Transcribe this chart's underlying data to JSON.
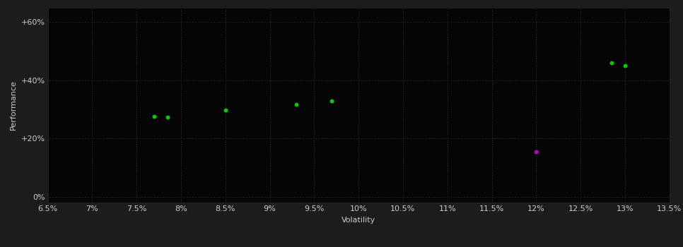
{
  "background_color": "#1c1c1c",
  "plot_bg_color": "#050505",
  "grid_color": "#2d2d2d",
  "text_color": "#cccccc",
  "xlabel": "Volatility",
  "ylabel": "Performance",
  "xlim": [
    0.065,
    0.135
  ],
  "ylim": [
    -0.02,
    0.65
  ],
  "xticks": [
    0.065,
    0.07,
    0.075,
    0.08,
    0.085,
    0.09,
    0.095,
    0.1,
    0.105,
    0.11,
    0.115,
    0.12,
    0.125,
    0.13,
    0.135
  ],
  "yticks": [
    0.0,
    0.2,
    0.4,
    0.6
  ],
  "ytick_labels": [
    "0%",
    "+20%",
    "+40%",
    "+60%"
  ],
  "xtick_labels": [
    "6.5%",
    "7%",
    "7.5%",
    "8%",
    "8.5%",
    "9%",
    "9.5%",
    "10%",
    "10.5%",
    "11%",
    "11.5%",
    "12%",
    "12.5%",
    "13%",
    "13.5%"
  ],
  "green_points": [
    [
      0.077,
      0.275
    ],
    [
      0.0785,
      0.272
    ],
    [
      0.085,
      0.298
    ],
    [
      0.093,
      0.318
    ],
    [
      0.097,
      0.328
    ],
    [
      0.1285,
      0.46
    ],
    [
      0.13,
      0.45
    ]
  ],
  "magenta_points": [
    [
      0.12,
      0.155
    ]
  ],
  "green_color": "#00cc00",
  "magenta_color": "#bb00bb",
  "marker_size": 18,
  "font_size": 8,
  "label_font_size": 8
}
